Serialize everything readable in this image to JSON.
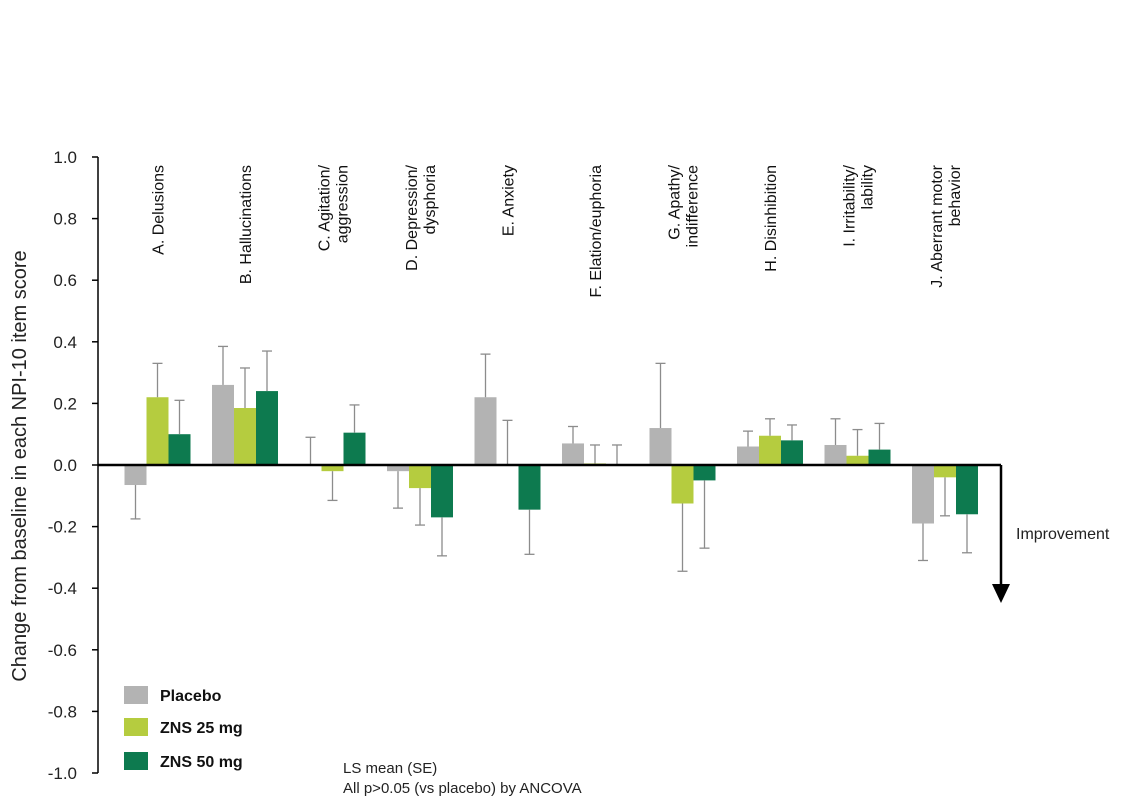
{
  "chart_data": {
    "type": "bar",
    "title": "",
    "xlabel": "",
    "ylabel": "Change from baseline in each NPI-10 item score",
    "ylim": [
      -1.0,
      1.0
    ],
    "yticks": [
      "1.0",
      "0.8",
      "0.6",
      "0.4",
      "0.2",
      "0.0",
      "-0.2",
      "-0.4",
      "-0.6",
      "-0.8",
      "-1.0"
    ],
    "ytick_values": [
      1.0,
      0.8,
      0.6,
      0.4,
      0.2,
      0.0,
      -0.2,
      -0.4,
      -0.6,
      -0.8,
      -1.0
    ],
    "grid": false,
    "legend_position": "bottom-left",
    "categories": [
      [
        "A. Delusions"
      ],
      [
        "B. Hallucinations"
      ],
      [
        "C. Agitation/",
        "aggression"
      ],
      [
        "D. Depression/",
        "dysphoria"
      ],
      [
        "E. Anxiety"
      ],
      [
        "F. Elation/euphoria"
      ],
      [
        "G. Apathy/",
        "indifference"
      ],
      [
        "H. Disinhibition"
      ],
      [
        "I. Irritability/",
        "lability"
      ],
      [
        "J. Aberrant motor",
        "behavior"
      ]
    ],
    "series": [
      {
        "name": "Placebo",
        "color": "#b3b3b3",
        "values": [
          -0.065,
          0.26,
          0.0,
          -0.02,
          0.22,
          0.07,
          0.12,
          0.06,
          0.065,
          -0.19
        ],
        "errors": [
          0.11,
          0.125,
          0.09,
          0.12,
          0.14,
          0.055,
          0.21,
          0.05,
          0.085,
          0.12
        ]
      },
      {
        "name": "ZNS 25 mg",
        "color": "#b5cc3f",
        "values": [
          0.22,
          0.185,
          -0.02,
          -0.075,
          0.0,
          0.005,
          -0.125,
          0.095,
          0.03,
          -0.04
        ],
        "errors": [
          0.11,
          0.13,
          0.095,
          0.12,
          0.145,
          0.06,
          0.22,
          0.055,
          0.085,
          0.125
        ]
      },
      {
        "name": "ZNS 50 mg",
        "color": "#0d7a4f",
        "values": [
          0.1,
          0.24,
          0.105,
          -0.17,
          -0.145,
          0.0,
          -0.05,
          0.08,
          0.05,
          -0.16
        ],
        "errors": [
          0.11,
          0.13,
          0.09,
          0.125,
          0.145,
          0.065,
          0.22,
          0.05,
          0.085,
          0.125
        ]
      }
    ],
    "annotation": "Improvement",
    "notes": [
      "LS mean (SE)",
      "All p>0.05 (vs placebo) by ANCOVA"
    ]
  }
}
